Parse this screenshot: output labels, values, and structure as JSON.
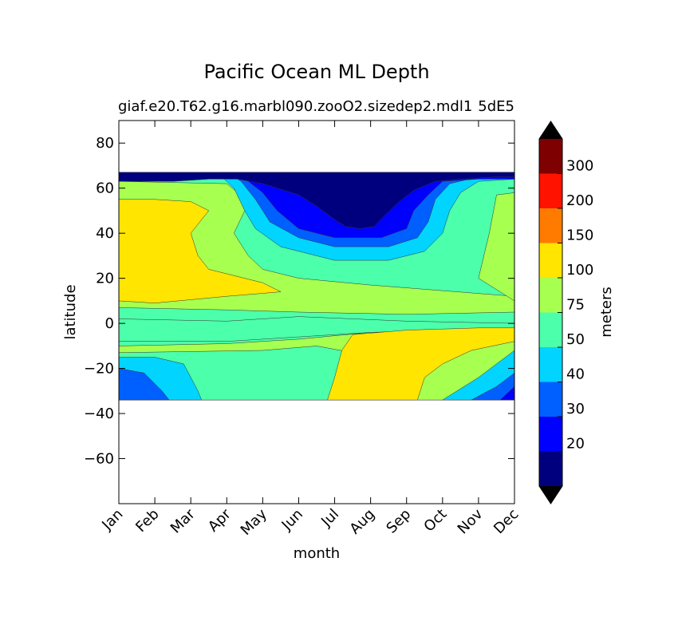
{
  "chart_data": {
    "type": "filled-contour",
    "title": "Pacific Ocean ML Depth",
    "subtitle_left": "giaf.e20.T62.g16.marbl090.zooO2.sizedep2.mdl1",
    "subtitle_right": "5dE5",
    "xlabel": "month",
    "ylabel": "latitude",
    "x_ticks": [
      "Jan",
      "Feb",
      "Mar",
      "Apr",
      "May",
      "Jun",
      "Jul",
      "Aug",
      "Sep",
      "Oct",
      "Nov",
      "Dec"
    ],
    "y_ticks": [
      80,
      60,
      40,
      20,
      0,
      -20,
      -40,
      -60
    ],
    "y_tick_labels": [
      "80",
      "60",
      "40",
      "20",
      "0",
      "−20",
      "−40",
      "−60"
    ],
    "ylim": [
      -80,
      90
    ],
    "data_lat_range": [
      -34,
      67
    ],
    "colorbar": {
      "label": "meters",
      "levels": [
        10,
        20,
        30,
        40,
        50,
        75,
        100,
        150,
        200,
        300,
        400
      ],
      "tick_labels": [
        "20",
        "30",
        "40",
        "50",
        "75",
        "100",
        "150",
        "200",
        "300"
      ],
      "colors": [
        "#00007f",
        "#0000ff",
        "#0060ff",
        "#00d4ff",
        "#4cffaa",
        "#a7ff4f",
        "#ffe500",
        "#ff7b00",
        "#ff1300",
        "#7f0000"
      ],
      "extend_min_color": "#000000",
      "extend_max_color": "#000000"
    },
    "contours": [
      {
        "level_index": 1,
        "band": "20-30",
        "points": [
          [
            1,
            67
          ],
          [
            1,
            63
          ],
          [
            2,
            62
          ],
          [
            3,
            62
          ],
          [
            4,
            62
          ],
          [
            4.8,
            61
          ],
          [
            5.3,
            59
          ],
          [
            5.6,
            56
          ],
          [
            5.8,
            52
          ],
          [
            6.2,
            48
          ],
          [
            6.5,
            45
          ],
          [
            7,
            44
          ],
          [
            7.5,
            44
          ],
          [
            8,
            46
          ],
          [
            8.5,
            50
          ],
          [
            9,
            55
          ],
          [
            9.5,
            60
          ],
          [
            10,
            63
          ],
          [
            11,
            64
          ],
          [
            12,
            64
          ],
          [
            12,
            67
          ]
        ]
      },
      {
        "level_index": 0,
        "band": "10-20",
        "points": [
          [
            4.3,
            67
          ],
          [
            4.8,
            65
          ],
          [
            5.3,
            63
          ],
          [
            5.8,
            60
          ],
          [
            6.2,
            55
          ],
          [
            6.6,
            50
          ],
          [
            6.9,
            45
          ],
          [
            7.2,
            43
          ],
          [
            7.6,
            42
          ],
          [
            8,
            42
          ],
          [
            8.2,
            45
          ],
          [
            8.4,
            50
          ],
          [
            8.7,
            55
          ],
          [
            9,
            59
          ],
          [
            9.3,
            63
          ],
          [
            9.6,
            65
          ],
          [
            9.8,
            67
          ]
        ]
      }
    ]
  },
  "zones": [
    {
      "name": "north-bands",
      "points": [
        [
          1,
          63
        ],
        [
          2,
          62
        ],
        [
          3,
          61
        ],
        [
          4,
          60
        ],
        [
          4.8,
          59
        ],
        [
          5.2,
          50
        ],
        [
          5.5,
          43
        ],
        [
          6,
          37
        ],
        [
          7,
          35
        ],
        [
          8,
          35
        ],
        [
          9,
          36
        ],
        [
          10,
          48
        ],
        [
          10.5,
          55
        ],
        [
          11,
          60
        ],
        [
          12,
          62
        ],
        [
          12,
          10
        ],
        [
          1,
          10
        ]
      ]
    }
  ]
}
